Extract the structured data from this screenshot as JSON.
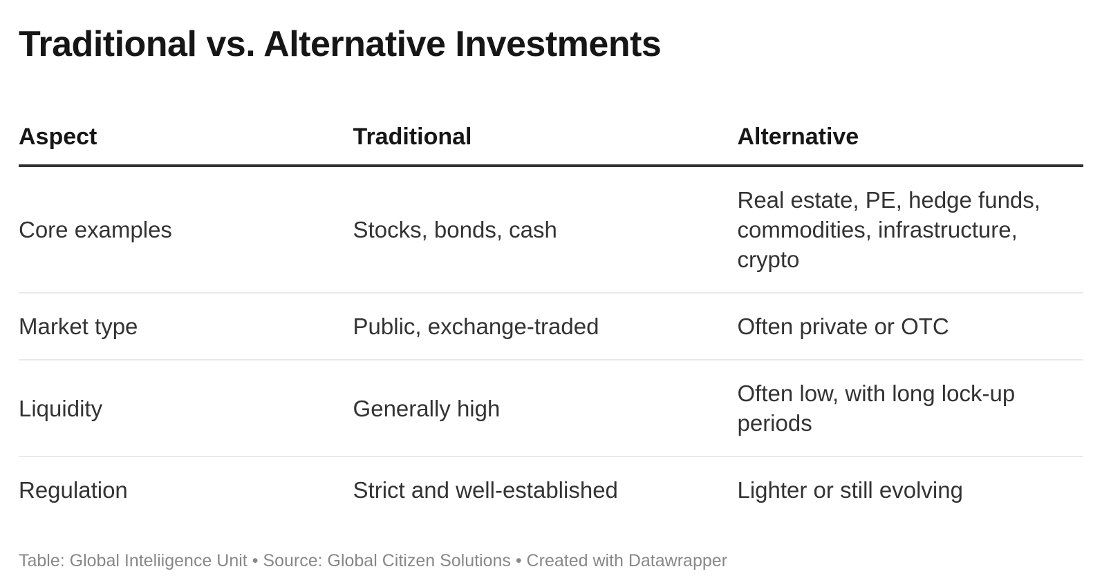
{
  "title": "Traditional vs. Alternative Investments",
  "chart_data": {
    "type": "table",
    "title": "Traditional vs. Alternative Investments",
    "columns": [
      "Aspect",
      "Traditional",
      "Alternative"
    ],
    "rows": [
      [
        "Core examples",
        "Stocks, bonds, cash",
        "Real estate, PE, hedge funds, commodities, infrastructure, crypto"
      ],
      [
        "Market type",
        "Public, exchange-traded",
        "Often private or OTC"
      ],
      [
        "Liquidity",
        "Generally high",
        "Often low, with long lock-up periods"
      ],
      [
        "Regulation",
        "Strict and well-established",
        "Lighter or still evolving"
      ]
    ],
    "notes": "Table: Global Inteliigence Unit • Source: Global Citizen Solutions • Created with Datawrapper",
    "layout_hints": {
      "header_rule": "thick dark line under column headers",
      "row_dividers": "thin light gray lines between body rows",
      "grid": "horizontal only"
    }
  },
  "footer": {
    "text": "Table: Global Inteliigence Unit • Source: Global Citizen Solutions • Created with Datawrapper"
  },
  "colors": {
    "background": "#ffffff",
    "title_text": "#161616",
    "header_text": "#161616",
    "body_text": "#333333",
    "header_rule": "#333333",
    "row_divider": "#e9e9e9",
    "footer_text": "#888888"
  }
}
